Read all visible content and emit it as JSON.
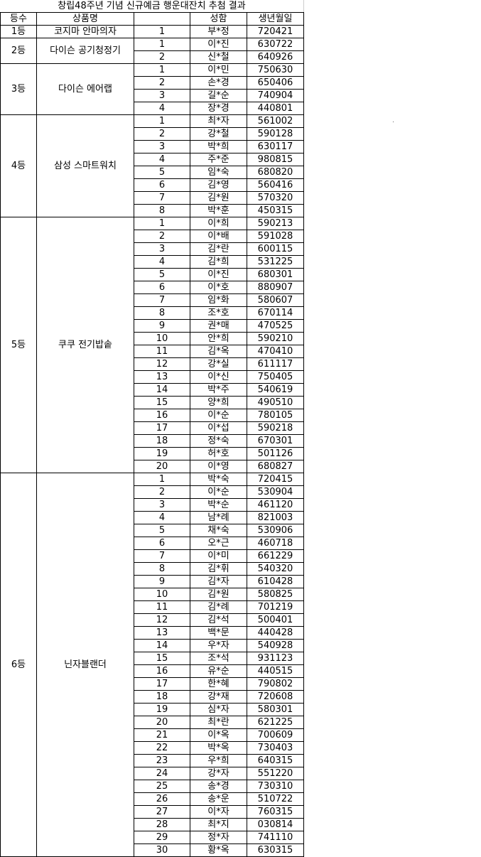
{
  "title": "창립48주년 기념 신규예금 행운대잔치 추첨 결과",
  "headers": [
    "등수",
    "상품명",
    "",
    "성함",
    "생년월일"
  ],
  "groups": [
    {
      "rank": "1등",
      "prize": "코지마 안마의자",
      "winners": [
        [
          "부*정",
          "720421"
        ]
      ]
    },
    {
      "rank": "2등",
      "prize": "다이슨 공기청정기",
      "winners": [
        [
          "이*진",
          "630722"
        ],
        [
          "신*철",
          "640926"
        ]
      ]
    },
    {
      "rank": "3등",
      "prize": "다이슨 에어랩",
      "winners": [
        [
          "이*민",
          "750630"
        ],
        [
          "손*경",
          "650406"
        ],
        [
          "길*순",
          "740904"
        ],
        [
          "장*경",
          "440801"
        ]
      ]
    },
    {
      "rank": "4등",
      "prize": "삼성 스마트워치",
      "winners": [
        [
          "최*자",
          "561002"
        ],
        [
          "강*철",
          "590128"
        ],
        [
          "박*희",
          "630117"
        ],
        [
          "주*준",
          "980815"
        ],
        [
          "임*숙",
          "680820"
        ],
        [
          "김*영",
          "560416"
        ],
        [
          "김*원",
          "570320"
        ],
        [
          "박*훈",
          "450315"
        ]
      ]
    },
    {
      "rank": "5등",
      "prize": "쿠쿠 전기밥솥",
      "winners": [
        [
          "이*희",
          "590213"
        ],
        [
          "이*배",
          "591028"
        ],
        [
          "김*란",
          "600115"
        ],
        [
          "김*희",
          "531225"
        ],
        [
          "이*진",
          "680301"
        ],
        [
          "이*호",
          "880907"
        ],
        [
          "임*화",
          "580607"
        ],
        [
          "조*호",
          "670114"
        ],
        [
          "권*매",
          "470525"
        ],
        [
          "안*희",
          "590210"
        ],
        [
          "김*옥",
          "470410"
        ],
        [
          "강*실",
          "611117"
        ],
        [
          "이*신",
          "750405"
        ],
        [
          "박*주",
          "540619"
        ],
        [
          "양*희",
          "490510"
        ],
        [
          "이*순",
          "780105"
        ],
        [
          "이*섭",
          "590218"
        ],
        [
          "정*숙",
          "670301"
        ],
        [
          "허*호",
          "501126"
        ],
        [
          "이*영",
          "680827"
        ]
      ]
    },
    {
      "rank": "6등",
      "prize": "닌자블랜더",
      "winners": [
        [
          "박*숙",
          "720415"
        ],
        [
          "이*순",
          "530904"
        ],
        [
          "박*순",
          "461120"
        ],
        [
          "남*례",
          "821003"
        ],
        [
          "채*숙",
          "530906"
        ],
        [
          "오*근",
          "460718"
        ],
        [
          "이*미",
          "661229"
        ],
        [
          "김*휘",
          "540320"
        ],
        [
          "김*자",
          "610428"
        ],
        [
          "김*원",
          "580825"
        ],
        [
          "김*례",
          "701219"
        ],
        [
          "김*석",
          "500401"
        ],
        [
          "백*문",
          "440428"
        ],
        [
          "우*자",
          "540928"
        ],
        [
          "조*석",
          "931123"
        ],
        [
          "유*순",
          "440515"
        ],
        [
          "한*혜",
          "790802"
        ],
        [
          "강*재",
          "720608"
        ],
        [
          "심*자",
          "580301"
        ],
        [
          "최*란",
          "621225"
        ],
        [
          "이*옥",
          "700609"
        ],
        [
          "박*옥",
          "730403"
        ],
        [
          "우*희",
          "640315"
        ],
        [
          "강*자",
          "551220"
        ],
        [
          "송*경",
          "730310"
        ],
        [
          "송*운",
          "510722"
        ],
        [
          "이*자",
          "760315"
        ],
        [
          "최*지",
          "030814"
        ],
        [
          "정*자",
          "741110"
        ],
        [
          "황*옥",
          "630315"
        ]
      ]
    }
  ]
}
